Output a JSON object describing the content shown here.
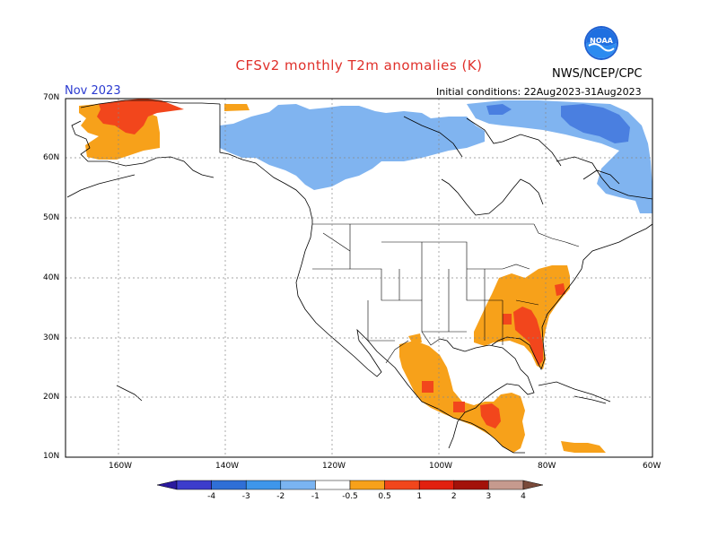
{
  "header": {
    "title": "CFSv2 monthly T2m anomalies (K)",
    "agency": "NWS/NCEP/CPC",
    "month": "Nov 2023",
    "initial_conditions": "Initial conditions: 22Aug2023-31Aug2023",
    "logo_text": "NOAA"
  },
  "axes": {
    "lat_labels": [
      "70N",
      "60N",
      "50N",
      "40N",
      "30N",
      "20N",
      "10N"
    ],
    "lon_labels": [
      "160W",
      "140W",
      "120W",
      "100W",
      "80W",
      "60W"
    ]
  },
  "legend": {
    "ticks": [
      "-4",
      "-3",
      "-2",
      "-1",
      "-0.5",
      "0.5",
      "1",
      "2",
      "3",
      "4"
    ],
    "colors": [
      "#2b1a9e",
      "#3c3ccc",
      "#2f6fd6",
      "#3e96ea",
      "#7ab4f2",
      "#ffffff",
      "#f7a11a",
      "#f2461c",
      "#e2200f",
      "#a3120a",
      "#c69a8e",
      "#7a4a3a"
    ]
  },
  "colors": {
    "cold_light": "#80b4f0",
    "cold_mid": "#4a7fe0",
    "warm_light": "#f7a11a",
    "warm_mid": "#f2461c",
    "warm_strong": "#e2200f"
  }
}
